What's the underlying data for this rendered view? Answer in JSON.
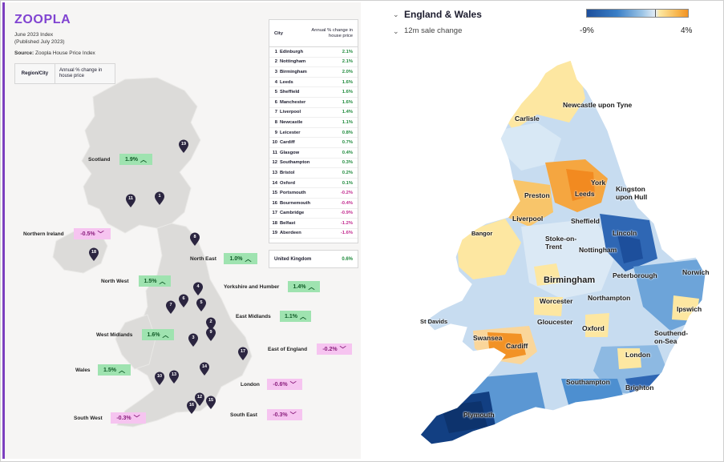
{
  "left": {
    "brand": "ZOOPLA",
    "index_title": "June 2023 Index",
    "published": "(Published July 2023)",
    "source_label": "Source:",
    "source_value": "Zoopla House Price Index",
    "header": {
      "col1": "Region/City",
      "col2": "Annual % change in house price"
    },
    "regions": [
      {
        "name": "Scotland",
        "value": "1.9%",
        "trend": "up"
      },
      {
        "name": "Northern Ireland",
        "value": "-0.5%",
        "trend": "down"
      },
      {
        "name": "North East",
        "value": "1.0%",
        "trend": "up"
      },
      {
        "name": "North West",
        "value": "1.5%",
        "trend": "up"
      },
      {
        "name": "Yorkshire and Humber",
        "value": "1.4%",
        "trend": "up"
      },
      {
        "name": "East Midlands",
        "value": "1.1%",
        "trend": "up"
      },
      {
        "name": "West Midlands",
        "value": "1.6%",
        "trend": "up"
      },
      {
        "name": "East of England",
        "value": "-0.2%",
        "trend": "down"
      },
      {
        "name": "Wales",
        "value": "1.5%",
        "trend": "up"
      },
      {
        "name": "London",
        "value": "-0.6%",
        "trend": "down"
      },
      {
        "name": "South West",
        "value": "-0.3%",
        "trend": "down"
      },
      {
        "name": "South East",
        "value": "-0.3%",
        "trend": "down"
      }
    ],
    "pins": [
      "19",
      "11",
      "1",
      "8",
      "18",
      "4",
      "6",
      "5",
      "7",
      "2",
      "9",
      "3",
      "17",
      "14",
      "10",
      "13",
      "12",
      "15",
      "16"
    ],
    "city_table": {
      "col_city": "City",
      "col_change": "Annual % change in house price",
      "rows": [
        {
          "rank": "1",
          "city": "Edinburgh",
          "value": "2.1%",
          "sign": "pos"
        },
        {
          "rank": "2",
          "city": "Nottingham",
          "value": "2.1%",
          "sign": "pos"
        },
        {
          "rank": "3",
          "city": "Birmingham",
          "value": "2.0%",
          "sign": "pos"
        },
        {
          "rank": "4",
          "city": "Leeds",
          "value": "1.6%",
          "sign": "pos"
        },
        {
          "rank": "5",
          "city": "Sheffield",
          "value": "1.6%",
          "sign": "pos"
        },
        {
          "rank": "6",
          "city": "Manchester",
          "value": "1.6%",
          "sign": "pos"
        },
        {
          "rank": "7",
          "city": "Liverpool",
          "value": "1.4%",
          "sign": "pos"
        },
        {
          "rank": "8",
          "city": "Newcastle",
          "value": "1.1%",
          "sign": "pos"
        },
        {
          "rank": "9",
          "city": "Leicester",
          "value": "0.8%",
          "sign": "pos"
        },
        {
          "rank": "10",
          "city": "Cardiff",
          "value": "0.7%",
          "sign": "pos"
        },
        {
          "rank": "11",
          "city": "Glasgow",
          "value": "0.4%",
          "sign": "pos"
        },
        {
          "rank": "12",
          "city": "Southampton",
          "value": "0.3%",
          "sign": "pos"
        },
        {
          "rank": "13",
          "city": "Bristol",
          "value": "0.2%",
          "sign": "pos"
        },
        {
          "rank": "14",
          "city": "Oxford",
          "value": "0.1%",
          "sign": "pos"
        },
        {
          "rank": "15",
          "city": "Portsmouth",
          "value": "-0.2%",
          "sign": "neg"
        },
        {
          "rank": "16",
          "city": "Bournemouth",
          "value": "-0.4%",
          "sign": "neg"
        },
        {
          "rank": "17",
          "city": "Cambridge",
          "value": "-0.9%",
          "sign": "neg"
        },
        {
          "rank": "18",
          "city": "Belfast",
          "value": "-1.2%",
          "sign": "neg"
        },
        {
          "rank": "19",
          "city": "Aberdeen",
          "value": "-1.6%",
          "sign": "neg"
        }
      ]
    },
    "uk_total": {
      "label": "United Kingdom",
      "value": "0.6%"
    }
  },
  "right": {
    "region_select": "England & Wales",
    "metric_select": "12m sale change",
    "legend_min": "-9%",
    "legend_max": "4%",
    "places": [
      "Newcastle upon Tyne",
      "Carlisle",
      "York",
      "Leeds",
      "Kingston upon Hull",
      "Preston",
      "Liverpool",
      "Sheffield",
      "Bangor",
      "Lincoln",
      "Stoke-on-Trent",
      "Nottingham",
      "Norwich",
      "Birmingham",
      "Peterborough",
      "Worcester",
      "Northampton",
      "Ipswich",
      "St Davids",
      "Gloucester",
      "Oxford",
      "Southend-on-Sea",
      "Swansea",
      "Cardiff",
      "London",
      "Southampton",
      "Brighton",
      "Plymouth"
    ],
    "colors": {
      "deep_blue": "#1d4f9c",
      "mid_blue": "#4d8fd0",
      "light_blue": "#a9cdeb",
      "pale": "#e6eef6",
      "yellow": "#fde7a1",
      "orange": "#f29225"
    }
  }
}
